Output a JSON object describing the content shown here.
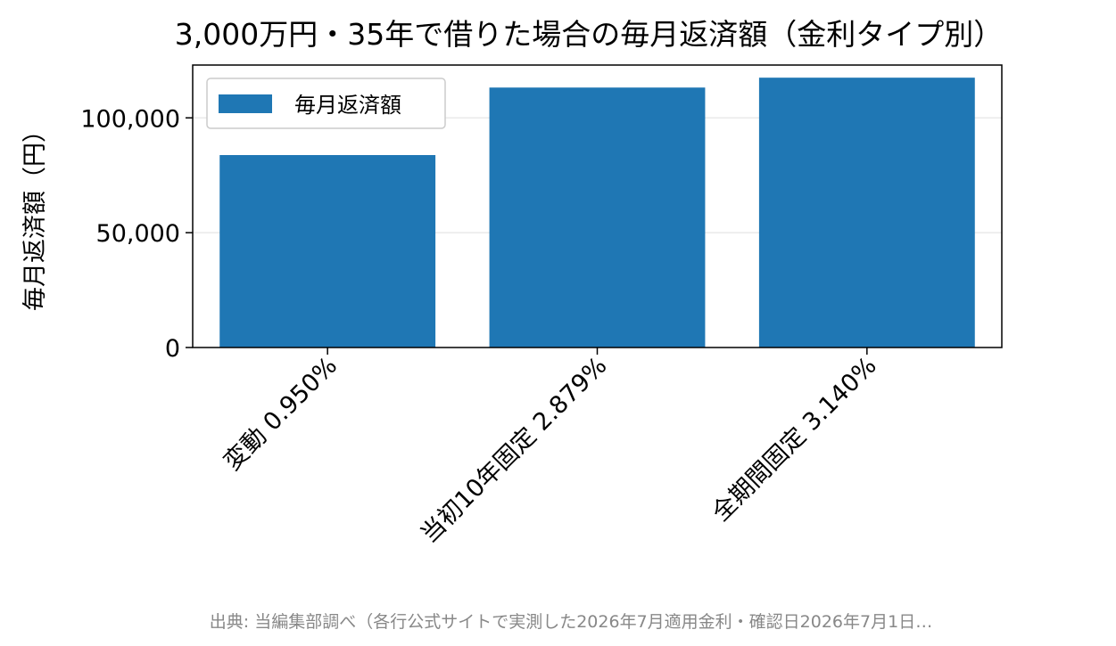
{
  "chart_data": {
    "type": "bar",
    "title": "3,000万円・35年で借りた場合の毎月返済額（金利タイプ別）",
    "xlabel": "",
    "ylabel": "毎月返済額（円）",
    "categories": [
      "変動 0.950%",
      "当初10年固定 2.879%",
      "全期間固定 3.140%"
    ],
    "series": [
      {
        "name": "毎月返済額",
        "values": [
          83800,
          113200,
          117500
        ]
      }
    ],
    "ylim": [
      0,
      123000
    ],
    "yticks": [
      0,
      50000,
      100000
    ],
    "ytick_labels": [
      "0",
      "50,000",
      "100,000"
    ],
    "grid": "horizontal",
    "legend_position": "top-left",
    "colors": {
      "bar": "#1f77b4",
      "grid": "#e6e6e6",
      "axis": "#000000",
      "footer": "#888888"
    }
  },
  "footer": {
    "source": "出典: 当編集部調べ（各行公式サイトで実測した2026年7月適用金利・確認日2026年7月1日…"
  }
}
